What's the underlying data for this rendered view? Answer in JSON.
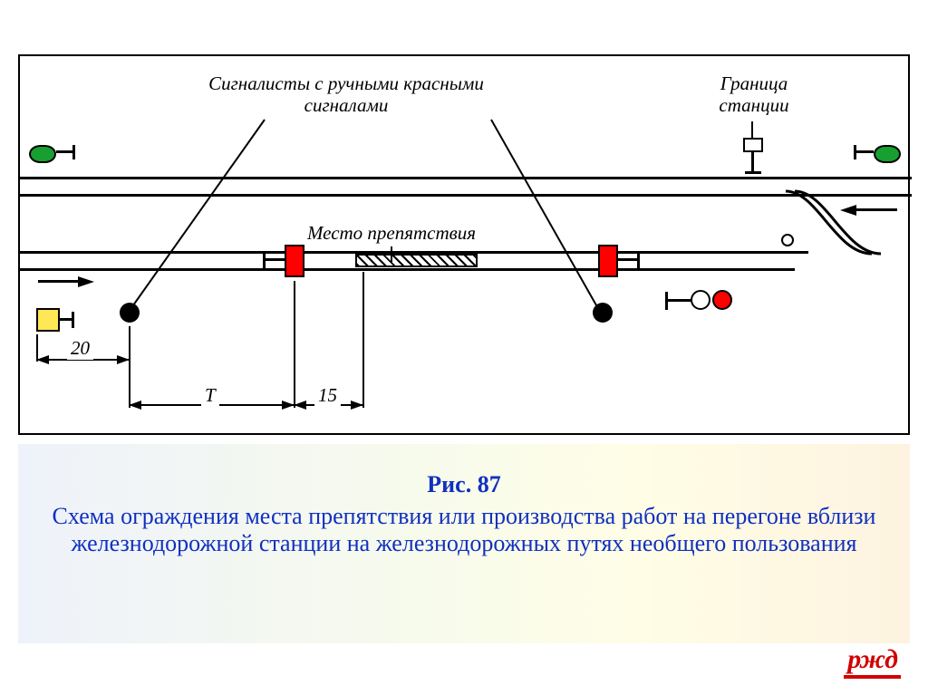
{
  "labels": {
    "signalmen": "Сигналисты с ручными красными\nсигналами",
    "boundary": "Граница\nстанции",
    "obstacle": "Место препятствия"
  },
  "dimensions": {
    "d20": "20",
    "dT": "Т",
    "d15": "15"
  },
  "caption": {
    "fig": "Рис. 87",
    "text": "Схема ограждения места препятствия или производства работ на перегоне вблизи железнодорожной станции на железнодорожных путях необщего пользования"
  },
  "logo": "ржд",
  "colors": {
    "flag": "#ff0000",
    "green": "#17a030",
    "yellow": "#ffe755",
    "caption": "#1030c0",
    "logo": "#d00000"
  },
  "diagram": {
    "track_upper_y": [
      135,
      155
    ],
    "track_lower_y": [
      215,
      235
    ],
    "switch_curve": true
  }
}
